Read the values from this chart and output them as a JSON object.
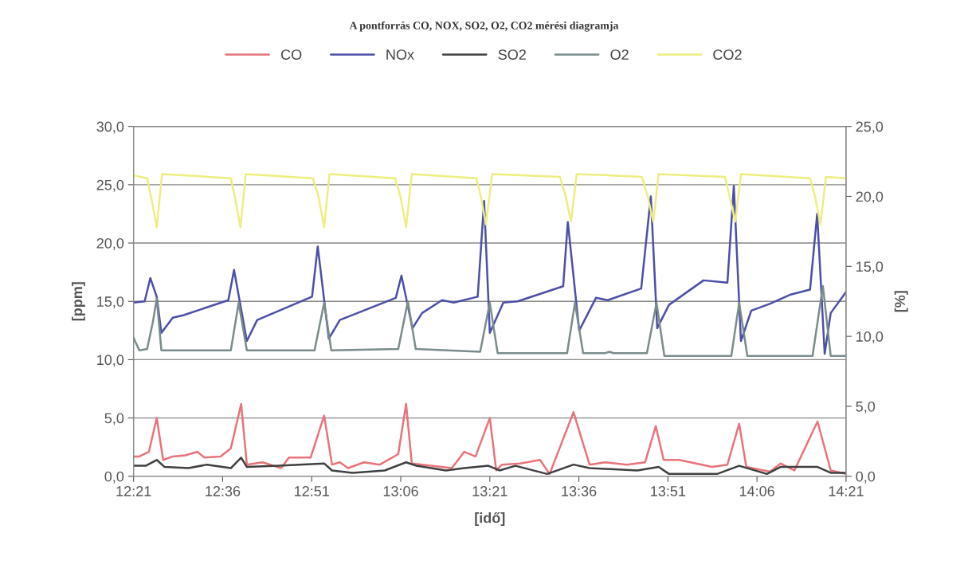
{
  "chart_data": {
    "type": "line",
    "title": "A pontforrás CO, NOX, SO2, O2, CO2 mérési diagramja",
    "xlabel": "[idő]",
    "ylabel": "[ppm]",
    "y2label": "[%]",
    "xlim": [
      12.35,
      14.35
    ],
    "xticks": [
      {
        "value": 12.35,
        "label": "12:21"
      },
      {
        "value": 12.6,
        "label": "12:36"
      },
      {
        "value": 12.85,
        "label": "12:51"
      },
      {
        "value": 13.1,
        "label": "13:06"
      },
      {
        "value": 13.35,
        "label": "13:21"
      },
      {
        "value": 13.6,
        "label": "13:36"
      },
      {
        "value": 13.85,
        "label": "13:51"
      },
      {
        "value": 14.1,
        "label": "14:06"
      },
      {
        "value": 14.35,
        "label": "14:21"
      }
    ],
    "ylim": [
      0,
      30
    ],
    "yticks": [
      {
        "value": 0,
        "label": "0,0"
      },
      {
        "value": 5,
        "label": "5,0"
      },
      {
        "value": 10,
        "label": "10,0"
      },
      {
        "value": 15,
        "label": "15,0"
      },
      {
        "value": 20,
        "label": "20,0"
      },
      {
        "value": 25,
        "label": "25,0"
      },
      {
        "value": 30,
        "label": "30,0"
      }
    ],
    "y2lim": [
      0,
      25
    ],
    "y2ticks": [
      {
        "value": 0,
        "label": "0,0"
      },
      {
        "value": 5,
        "label": "5,0"
      },
      {
        "value": 10,
        "label": "10,0"
      },
      {
        "value": 15,
        "label": "15,0"
      },
      {
        "value": 20,
        "label": "20,0"
      },
      {
        "value": 25,
        "label": "25,0"
      }
    ],
    "grid": "y",
    "legend": "top",
    "marker": "none",
    "line_style": "solid",
    "series": [
      {
        "name": "CO",
        "color": "#e8737a",
        "axis": "y",
        "x": [
          12.35,
          12.366,
          12.393,
          12.415,
          12.433,
          12.46,
          12.495,
          12.529,
          12.549,
          12.594,
          12.623,
          12.652,
          12.668,
          12.712,
          12.764,
          12.786,
          12.847,
          12.885,
          12.907,
          12.929,
          12.952,
          12.997,
          13.041,
          13.093,
          13.115,
          13.131,
          13.243,
          13.256,
          13.278,
          13.31,
          13.35,
          13.368,
          13.384,
          13.435,
          13.491,
          13.518,
          13.585,
          13.63,
          13.674,
          13.735,
          13.786,
          13.816,
          13.838,
          13.882,
          13.974,
          14.017,
          14.05,
          14.07,
          14.137,
          14.166,
          14.205,
          14.27,
          14.307,
          14.35
        ],
        "values": [
          1.7,
          1.7,
          2.1,
          5.0,
          1.4,
          1.7,
          1.8,
          2.1,
          1.6,
          1.7,
          2.4,
          6.2,
          1.0,
          1.2,
          0.7,
          1.6,
          1.6,
          5.2,
          1.0,
          1.2,
          0.7,
          1.2,
          1.0,
          1.9,
          6.2,
          1.1,
          0.7,
          1.2,
          2.1,
          1.7,
          5.0,
          0.5,
          1.0,
          1.1,
          1.4,
          0.2,
          5.5,
          1.0,
          1.2,
          1.0,
          1.2,
          4.3,
          1.4,
          1.4,
          0.8,
          1.0,
          4.5,
          0.8,
          0.4,
          1.1,
          0.5,
          4.7,
          0.5,
          0.2
        ]
      },
      {
        "name": "NOx",
        "color": "#4b4fa8",
        "axis": "y",
        "x": [
          12.35,
          12.381,
          12.397,
          12.415,
          12.428,
          12.46,
          12.489,
          12.616,
          12.632,
          12.668,
          12.697,
          12.851,
          12.867,
          12.898,
          12.929,
          13.086,
          13.102,
          13.133,
          13.16,
          13.216,
          13.249,
          13.316,
          13.334,
          13.35,
          13.388,
          13.428,
          13.556,
          13.569,
          13.601,
          13.648,
          13.681,
          13.775,
          13.802,
          13.82,
          13.853,
          13.95,
          14.017,
          14.035,
          14.055,
          14.084,
          14.137,
          14.196,
          14.249,
          14.269,
          14.29,
          14.307,
          14.35
        ],
        "values": [
          14.9,
          15.0,
          17.0,
          15.4,
          12.3,
          13.6,
          13.8,
          15.1,
          17.7,
          11.6,
          13.4,
          15.4,
          19.7,
          11.8,
          13.4,
          15.3,
          17.2,
          12.7,
          14.0,
          15.1,
          14.9,
          15.4,
          23.6,
          12.3,
          14.9,
          15.0,
          16.3,
          21.8,
          12.5,
          15.3,
          15.1,
          16.1,
          24.0,
          12.7,
          14.7,
          16.8,
          16.6,
          24.9,
          11.6,
          14.2,
          14.8,
          15.6,
          16.0,
          22.5,
          10.5,
          14.0,
          15.8
        ]
      },
      {
        "name": "SO2",
        "color": "#404040",
        "axis": "y",
        "x": [
          12.35,
          12.384,
          12.415,
          12.437,
          12.504,
          12.556,
          12.623,
          12.652,
          12.668,
          12.757,
          12.885,
          12.907,
          12.965,
          13.055,
          13.115,
          13.144,
          13.227,
          13.278,
          13.346,
          13.377,
          13.422,
          13.511,
          13.585,
          13.63,
          13.764,
          13.824,
          13.853,
          13.988,
          14.05,
          14.128,
          14.166,
          14.27,
          14.307,
          14.35
        ],
        "values": [
          0.9,
          0.9,
          1.4,
          0.8,
          0.7,
          1.0,
          0.7,
          1.6,
          0.8,
          0.9,
          1.1,
          0.5,
          0.3,
          0.5,
          1.2,
          0.9,
          0.5,
          0.7,
          0.9,
          0.5,
          0.9,
          0.2,
          1.0,
          0.7,
          0.5,
          0.8,
          0.2,
          0.2,
          0.9,
          0.2,
          0.8,
          0.8,
          0.3,
          0.3
        ]
      },
      {
        "name": "O2",
        "color": "#7a8c8c",
        "axis": "y2",
        "x": [
          12.35,
          12.366,
          12.388,
          12.404,
          12.415,
          12.428,
          12.623,
          12.645,
          12.668,
          12.858,
          12.885,
          12.905,
          13.093,
          13.12,
          13.142,
          13.323,
          13.35,
          13.372,
          13.567,
          13.589,
          13.612,
          13.674,
          13.686,
          13.697,
          13.791,
          13.818,
          13.84,
          14.028,
          14.05,
          14.073,
          14.256,
          14.285,
          14.307,
          14.35
        ],
        "values": [
          9.9,
          9.0,
          9.1,
          11.0,
          12.7,
          9.0,
          9.0,
          12.4,
          9.0,
          9.0,
          12.4,
          9.0,
          9.1,
          12.5,
          9.1,
          8.9,
          12.4,
          8.8,
          8.8,
          12.4,
          8.8,
          8.8,
          8.9,
          8.8,
          8.8,
          12.4,
          8.6,
          8.6,
          12.4,
          8.6,
          8.6,
          13.6,
          8.6,
          8.6
        ]
      },
      {
        "name": "CO2",
        "color": "#eeee80",
        "axis": "y2",
        "x": [
          12.35,
          12.388,
          12.399,
          12.415,
          12.43,
          12.623,
          12.634,
          12.65,
          12.665,
          12.853,
          12.869,
          12.885,
          12.9,
          13.084,
          13.099,
          13.115,
          13.131,
          13.312,
          13.325,
          13.339,
          13.357,
          13.547,
          13.563,
          13.578,
          13.594,
          13.777,
          13.793,
          13.809,
          13.824,
          14.01,
          14.023,
          14.039,
          14.055,
          14.249,
          14.263,
          14.278,
          14.294,
          14.35
        ],
        "values": [
          21.5,
          21.3,
          20.0,
          17.8,
          21.6,
          21.3,
          20.0,
          17.8,
          21.6,
          21.3,
          20.0,
          17.8,
          21.6,
          21.3,
          20.0,
          17.8,
          21.6,
          21.3,
          20.0,
          18.0,
          21.6,
          21.4,
          20.0,
          18.2,
          21.6,
          21.4,
          20.0,
          18.2,
          21.6,
          21.4,
          20.0,
          18.2,
          21.6,
          21.3,
          20.0,
          18.0,
          21.4,
          21.3
        ]
      }
    ]
  }
}
